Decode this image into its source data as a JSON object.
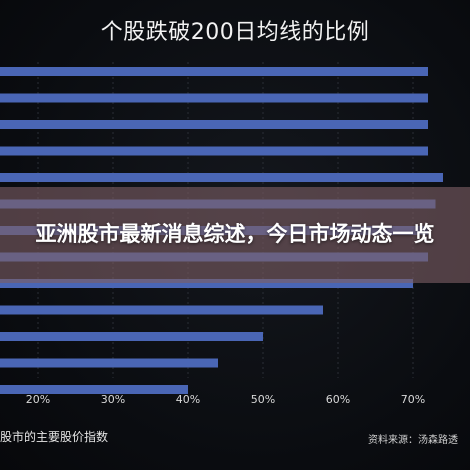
{
  "overlay": {
    "banner_text": "亚洲股市最新消息综述，今日市场动态一览"
  },
  "chart_data": {
    "type": "bar",
    "orientation": "horizontal",
    "title": "个股跌破200日均线的比例",
    "xlabel": "股市的主要股价指数",
    "ylabel": "",
    "x_ticks": [
      "20%",
      "30%",
      "40%",
      "50%",
      "60%",
      "70%"
    ],
    "xlim": [
      15,
      75
    ],
    "grid": true,
    "source": "资料来源：汤森路透",
    "bar_color": "#4a66b5",
    "categories": [
      "",
      "",
      "",
      "",
      "",
      "",
      "",
      "",
      "",
      "",
      "",
      "",
      ""
    ],
    "values": [
      72,
      72,
      72,
      72,
      74,
      73,
      72,
      72,
      70,
      58,
      50,
      44,
      40
    ]
  }
}
